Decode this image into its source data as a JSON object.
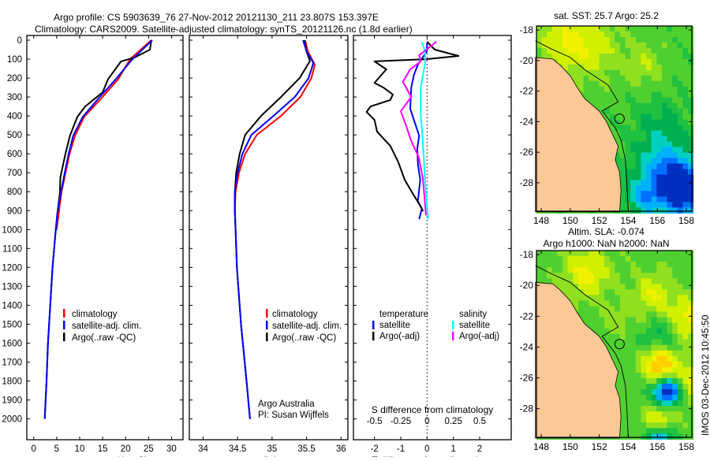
{
  "header": {
    "line1": "Argo profile: CS 5903639_76 27-Nov-2012 20121130_211 23.807S 153.397E",
    "line2": "Climatology: CARS2009. Satellite-adjusted climatology: synTS_20121126.nc (1.8d earlier)"
  },
  "colors": {
    "climatology": "#ff0000",
    "satellite": "#0000ff",
    "argo": "#000000",
    "s_satellite": "#00ffff",
    "s_argo": "#ff00ff",
    "land": "#fcc896"
  },
  "legend_main": [
    "climatology",
    "satellite-adj. clim.",
    "Argo(..raw -QC)"
  ],
  "legend_diff": {
    "t_head": "temperature",
    "s_head": "salinity",
    "t_sat": "satellite",
    "t_argo": "Argo(-adj)",
    "s_sat": "satellite",
    "s_argo": "Argo(-adj)"
  },
  "credits": {
    "org": "Argo Australia",
    "pi": "PI: Susan Wijffels"
  },
  "footer": {
    "stamp": "IMOS 03-Dec-2012 10:45:50"
  },
  "chart_data": [
    {
      "type": "line",
      "name": "temperature",
      "xlabel": "temperature (deg C)",
      "xlim": [
        -1.5,
        32.5
      ],
      "xticks": [
        0,
        5,
        10,
        15,
        20,
        25,
        30
      ],
      "ylim": [
        -25,
        2110
      ],
      "yticks": [
        0,
        100,
        200,
        300,
        400,
        500,
        600,
        700,
        800,
        900,
        1000,
        1100,
        1200,
        1300,
        1400,
        1500,
        1600,
        1700,
        1800,
        1900,
        2000
      ],
      "series": [
        {
          "name": "climatology",
          "depth": [
            0,
            100,
            205,
            308,
            404,
            504,
            600,
            704,
            808,
            904,
            1000
          ],
          "values": [
            25.6,
            21.0,
            18.4,
            14.7,
            11.0,
            9.0,
            7.8,
            6.9,
            6.0,
            5.5,
            5.0
          ]
        },
        {
          "name": "Argo(..raw -QC)",
          "depth": [
            0,
            50,
            92,
            112,
            205,
            275,
            350,
            404,
            504,
            600,
            725,
            808,
            904,
            1000,
            1200,
            1400,
            1600,
            1800,
            2000
          ],
          "values": [
            25.6,
            25.3,
            21.9,
            19.0,
            16.2,
            15.0,
            11.2,
            9.5,
            7.9,
            6.9,
            5.8,
            5.7,
            5.2,
            4.8,
            4.1,
            3.6,
            3.1,
            2.8,
            2.4
          ]
        },
        {
          "name": "satellite-adj. clim.",
          "depth": [
            0,
            100,
            205,
            308,
            404,
            504,
            600,
            704,
            808,
            904,
            1000,
            1200,
            1400,
            1600,
            1800,
            2000
          ],
          "values": [
            25.8,
            21.5,
            17.9,
            14.1,
            10.7,
            8.6,
            7.6,
            6.7,
            5.9,
            5.2,
            4.8,
            4.1,
            3.6,
            3.1,
            2.8,
            2.4
          ]
        }
      ]
    },
    {
      "type": "line",
      "name": "salinity",
      "xlabel": "salinity",
      "xlim": [
        33.8,
        36.1
      ],
      "xticks": [
        34,
        34.5,
        35,
        35.5,
        36
      ],
      "ylim": [
        -25,
        2110
      ],
      "series": [
        {
          "name": "climatology",
          "depth": [
            0,
            60,
            130,
            200,
            300,
            400,
            500,
            600,
            700,
            800,
            900,
            1000
          ],
          "values": [
            35.48,
            35.52,
            35.62,
            35.57,
            35.41,
            35.13,
            34.78,
            34.61,
            34.52,
            34.47,
            34.46,
            34.47
          ]
        },
        {
          "name": "Argo(..raw -QC)",
          "depth": [
            0,
            60,
            110,
            200,
            300,
            400,
            500,
            600,
            700,
            800,
            900,
            1000,
            1200,
            1500,
            1800,
            2000
          ],
          "values": [
            35.47,
            35.5,
            35.55,
            35.4,
            35.13,
            34.84,
            34.61,
            34.53,
            34.48,
            34.46,
            34.46,
            34.47,
            34.49,
            34.55,
            34.63,
            34.68
          ]
        },
        {
          "name": "satellite-adj. clim.",
          "depth": [
            0,
            60,
            120,
            200,
            300,
            400,
            500,
            600,
            700,
            800,
            900,
            1000,
            1200,
            1500,
            1800,
            2000
          ],
          "values": [
            35.45,
            35.5,
            35.6,
            35.53,
            35.33,
            35.02,
            34.7,
            34.57,
            34.5,
            34.46,
            34.46,
            34.47,
            34.49,
            34.55,
            34.63,
            34.68
          ]
        }
      ]
    },
    {
      "type": "line",
      "name": "difference",
      "xlabel": "T difference from climatology",
      "xlim": [
        -2.8,
        3.2
      ],
      "xticks": [
        -2,
        -1,
        0,
        1,
        2
      ],
      "x2label": "S difference from climatology",
      "x2ticks": [
        -0.5,
        -0.25,
        0,
        0.25,
        0.5
      ],
      "x2labels": [
        "-0.5",
        "-0.25",
        "0",
        "0.25",
        "0.5"
      ],
      "ylim": [
        -25,
        2110
      ],
      "series": [
        {
          "name": "T satellite",
          "axis": "T",
          "depth": [
            14,
            58,
            129,
            183,
            250,
            362,
            504,
            571,
            654,
            737,
            850,
            890,
            945
          ],
          "values": [
            0,
            0,
            -0.35,
            -0.5,
            -0.6,
            -0.64,
            -0.3,
            -0.37,
            -0.35,
            -0.26,
            -0.35,
            -0.2,
            -0.3
          ]
        },
        {
          "name": "T Argo(-adj)",
          "axis": "T",
          "depth": [
            8,
            50,
            67,
            83,
            100,
            112,
            154,
            225,
            250,
            287,
            316,
            350,
            379,
            421,
            483,
            558,
            642,
            737,
            808,
            879,
            904
          ],
          "values": [
            0,
            0.3,
            0.76,
            1.2,
            0,
            -2.0,
            -1.55,
            -2.0,
            -1.66,
            -1.3,
            -1.4,
            -2.15,
            -2.3,
            -2.0,
            -1.9,
            -1.4,
            -1.1,
            -0.85,
            -0.55,
            -0.24,
            -0.15
          ]
        },
        {
          "name": "S satellite",
          "axis": "S",
          "depth": [
            8,
            58,
            112,
            250,
            392,
            533,
            737,
            945
          ],
          "values": [
            -0.05,
            -0.02,
            -0.015,
            -0.06,
            -0.06,
            -0.04,
            -0.02,
            0.01
          ]
        },
        {
          "name": "S Argo(-adj)",
          "axis": "S",
          "depth": [
            8,
            80,
            112,
            154,
            220,
            300,
            375,
            450,
            533,
            617,
            729,
            925
          ],
          "values": [
            0.09,
            -0.075,
            -0.06,
            -0.16,
            -0.23,
            -0.15,
            -0.25,
            -0.2,
            -0.15,
            -0.08,
            -0.04,
            -0.01
          ]
        }
      ]
    },
    {
      "type": "heatmap",
      "name": "sst-map",
      "title": "sat. SST: 25.7 Argo: 25.2",
      "xticks": [
        148,
        150,
        152,
        154,
        156,
        158
      ],
      "yticks": [
        -18,
        -20,
        -22,
        -24,
        -26,
        -28
      ],
      "argo_position": [
        153.397,
        -23.807
      ]
    },
    {
      "type": "heatmap",
      "name": "sla-map",
      "title": "Altim. SLA: -0.074",
      "subtitle": "Argo h1000: NaN h2000: NaN",
      "xticks": [
        148,
        150,
        152,
        154,
        156,
        158
      ],
      "yticks": [
        -18,
        -20,
        -22,
        -24,
        -26,
        -28
      ],
      "argo_position": [
        153.397,
        -23.807
      ]
    }
  ]
}
